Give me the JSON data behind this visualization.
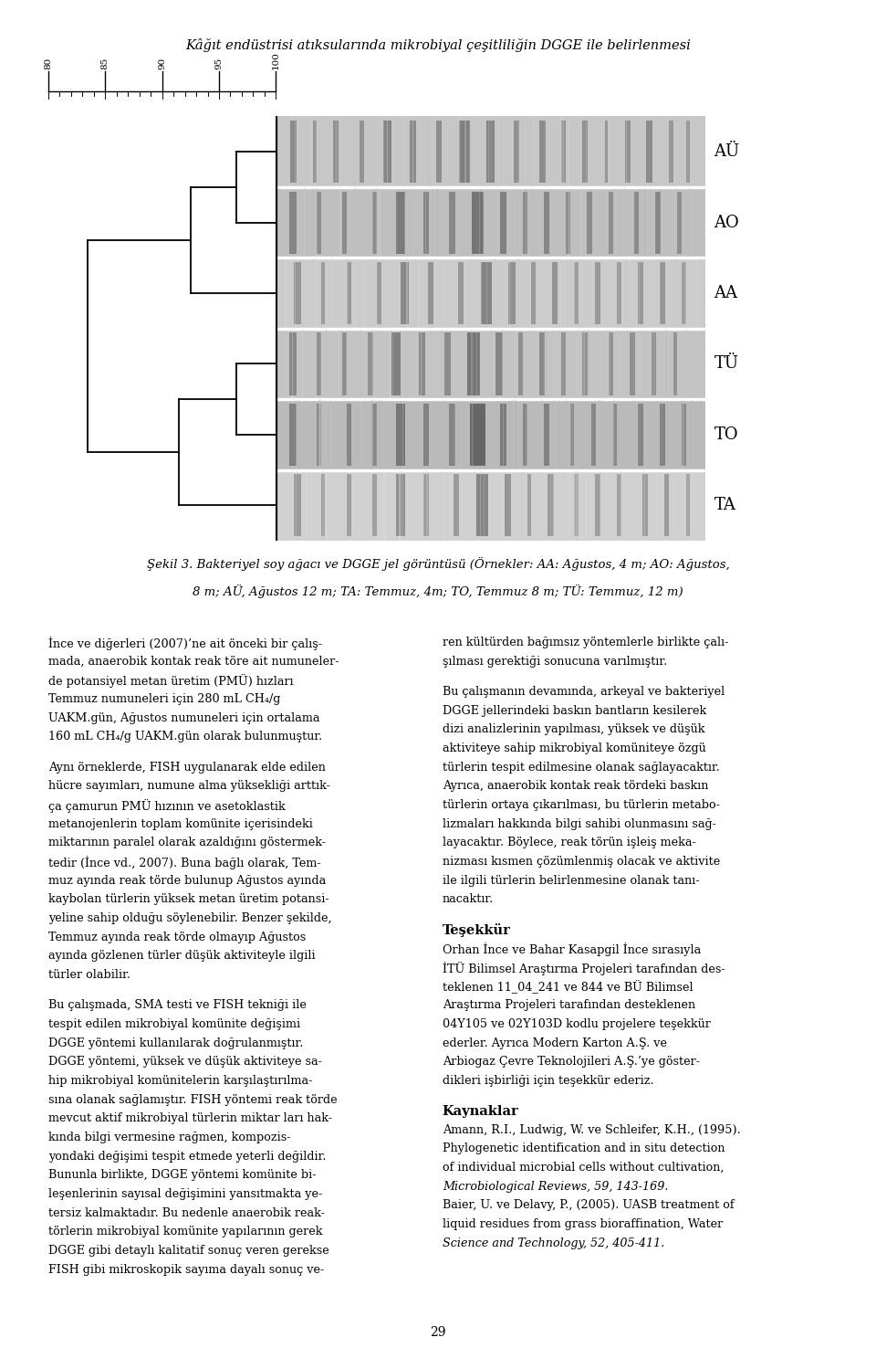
{
  "title": "Kâğıt endüstrisi atıksularında mikrobiyal çeşitliliğin DGGE ile belirlenmesi",
  "page_number": "29",
  "gel_labels": [
    "AÜ",
    "AO",
    "AA",
    "TÜ",
    "TO",
    "TA"
  ],
  "dendrogram_scale": [
    80,
    85,
    90,
    95,
    100
  ],
  "figure_caption_line1": "Şekil 3. Bakteriyel soy ağacı ve DGGE jel görüntüsü (Örnekler: AA: Ağustos, 4 m; AO: Ağustos,",
  "figure_caption_line2": "8 m; AÜ, Ağustos 12 m; TA: Temmuz, 4m; TO, Temmuz 8 m; TÜ: Temmuz, 12 m)",
  "col1_text": [
    {
      "İnce ve diğerleri (2007)’ne ait önceki bir çalış-": false
    },
    {
      "mada, anaerobik kontak reak töre ait numuneler-": false
    },
    {
      "de potansiyel metan üretim (PMÜ) hızları": false
    },
    {
      "Temmuz numuneleri için 280 mL CH₄/g": false
    },
    {
      "UAKM.gün, Ağustos numuneleri için ortalama": false
    },
    {
      "160 mL CH₄/g UAKM.gün olarak bulunmuştur.": false
    },
    {
      "": false
    },
    {
      "Aynı örneklerde, FISH uygulanarak elde edilen": false
    },
    {
      "hücre sayımları, numune alma yüksekliği arttık-": false
    },
    {
      "ça çamurun PMÜ hızının ve asetoklastik": false
    },
    {
      "metanojenlerin toplam komünite içerisindeki": false
    },
    {
      "miktarının paralel olarak azaldığını göstermek-": false
    },
    {
      "tedir (İnce vd., 2007). Buna bağlı olarak, Tem-": false
    },
    {
      "muz ayında reak törde bulunup Ağustos ayında": false
    },
    {
      "kaybolan türlerin yüksek metan üretim potansi-": false
    },
    {
      "yeline sahip olduğu söylenebilir. Benzer şekilde,": false
    },
    {
      "Temmuz ayında reak törde olmayıp Ağustos": false
    },
    {
      "ayında gözlenen türler düşük aktiviteyle ilgili": false
    },
    {
      "türler olabilir.": false
    },
    {
      "": false
    },
    {
      "Bu çalışmada, SMA testi ve FISH tekniği ile": false
    },
    {
      "tespit edilen mikrobiyal komünite değişimi": false
    },
    {
      "DGGE yöntemi kullanılarak doğrulanmıştır.": false
    },
    {
      "DGGE yöntemi, yüksek ve düşük aktiviteye sa-": false
    },
    {
      "hip mikrobiyal komünitelerin karşılaştırılma-": false
    },
    {
      "sına olanak sağlamıştır. FISH yöntemi reak törde": false
    },
    {
      "mevcut aktif mikrobiyal türlerin miktar ları hak-": false
    },
    {
      "kında bilgi vermesine rağmen, kompozis-": false
    },
    {
      "yondaki değişimi tespit etmede yeterli değildir.": false
    },
    {
      "Bununla birlikte, DGGE yöntemi komünite bi-": false
    },
    {
      "leşenlerinin sayısal değişimini yansıtmakta ye-": false
    },
    {
      "tersiz kalmaktadır. Bu nedenle anaerobik reak-": false
    },
    {
      "törlerin mikrobiyal komünite yapılarının gerek": false
    },
    {
      "DGGE gibi detaylı kalitatif sonuç veren gerekse": false
    },
    {
      "FISH gibi mikroskopik sayıma dayalı sonuç ve-": false
    }
  ],
  "col2_text": [
    {
      "ren kültürden bağımsız yöntemlerle birlikte çalı-": false
    },
    {
      "şılması gerektiği sonucuna varılmıştır.": false
    },
    {
      "": false
    },
    {
      "Bu çalışmanın devamında, arkeyal ve bakteriyel": false
    },
    {
      "DGGE jellerindeki baskın bantların kesilerek": false
    },
    {
      "dizi analizlerinin yapılması, yüksek ve düşük": false
    },
    {
      "aktiviteye sahip mikrobiyal komüniteye özgü": false
    },
    {
      "türlerin tespit edilmesine olanak sağlayacaktır.": false
    },
    {
      "Ayrıca, anaerobik kontak reak tördeki baskın": false
    },
    {
      "türlerin ortaya çıkarılması, bu türlerin metabo-": false
    },
    {
      "lizmaları hakkında bilgi sahibi olunmasını sağ-": false
    },
    {
      "layacaktır. Böylece, reak törün işleiş meka-": false
    },
    {
      "nizması kısmen çözümlenmiş olacak ve aktivite": false
    },
    {
      "ile ilgili türlerin belirlenmesine olanak tanı-": false
    },
    {
      "nacaktır.": false
    },
    {
      "": false
    },
    {
      "Teşekkür": true
    },
    {
      "Orhan İnce ve Bahar Kasapgil İnce sırasıyla": false
    },
    {
      "İTÜ Bilimsel Araştırma Projeleri tarafından des-": false
    },
    {
      "teklenen 11_04_241 ve 844 ve BÜ Bilimsel": false
    },
    {
      "Araştırma Projeleri tarafından desteklenen": false
    },
    {
      "04Y105 ve 02Y103D kodlu projelere teşekkür": false
    },
    {
      "ederler. Ayrıca Modern Karton A.Ş. ve": false
    },
    {
      "Arbiogaz Çevre Teknolojileri A.Ş.’ye göster-": false
    },
    {
      "dikleri işbirliği için teşekkür ederiz.": false
    },
    {
      "": false
    },
    {
      "Kaynaklar": true
    },
    {
      "Amann, R.I., Ludwig, W. ve Schleifer, K.H., (1995).": false
    },
    {
      "Phylogenetic identification and in situ detection": false
    },
    {
      "of individual microbial cells without cultivation,": false
    },
    {
      "Microbiological Reviews, 59, 143-169.": "italic"
    },
    {
      "Baier, U. ve Delavy, P., (2005). UASB treatment of": false
    },
    {
      "liquid residues from grass bioraffination, Water": false
    },
    {
      "Science and Technology, 52, 405-411.": "italic"
    }
  ],
  "background_color": "#ffffff",
  "text_color": "#000000",
  "merge_AU_AO": 96.5,
  "merge_AUAO_AA": 92.5,
  "merge_TU_TO": 96.5,
  "merge_TUTO_TA": 91.5,
  "merge_all": 83.5
}
